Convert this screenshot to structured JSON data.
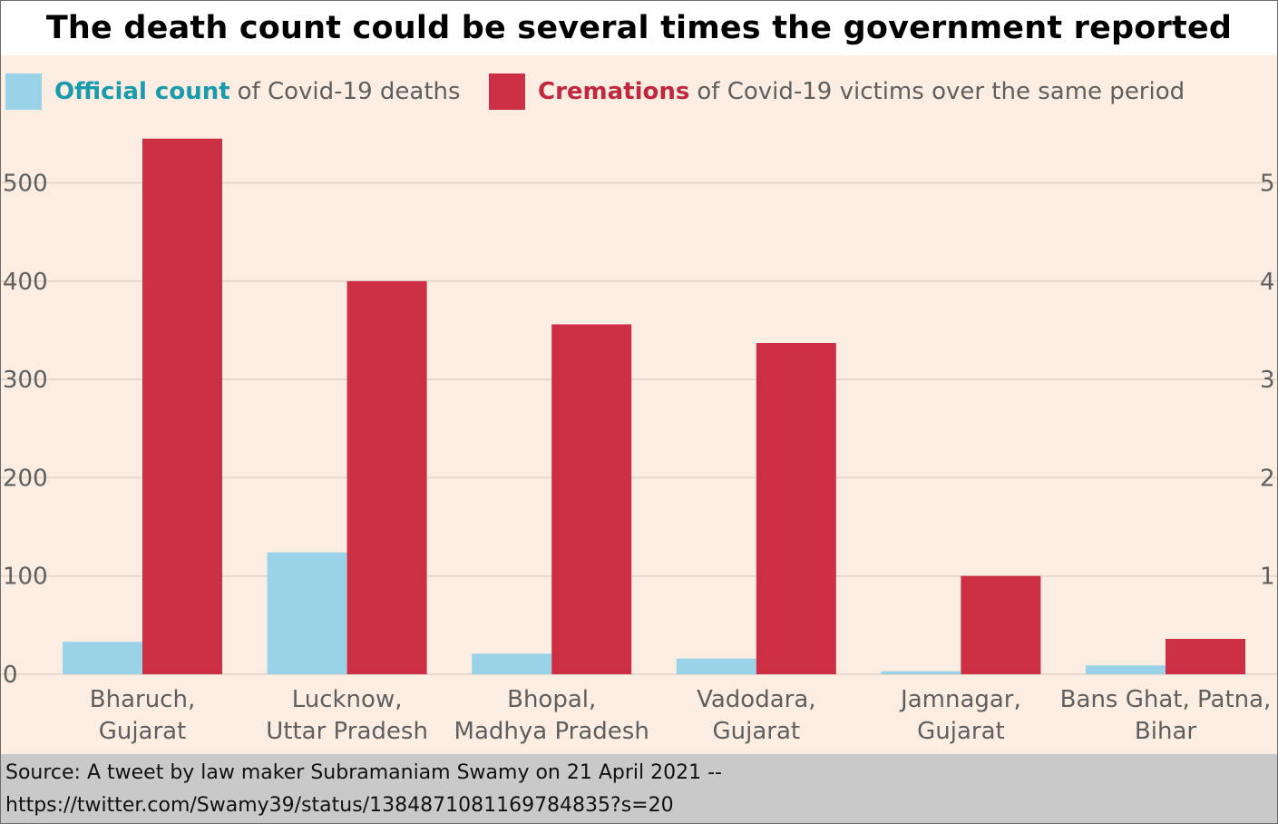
{
  "page": {
    "title": "The death count could be several times the government reported number",
    "source_line1": "Source: A tweet by law maker Subramaniam Swamy on 21 April 2021 --",
    "source_line2": "https://twitter.com/Swamy39/status/1384871081169784835?s=20"
  },
  "legend": {
    "official_key": "Official count",
    "official_rest": "of Covid-19 deaths",
    "cremations_key": "Cremations",
    "cremations_rest": "of Covid-19 victims over the same period"
  },
  "colors": {
    "official": "#9ad3e8",
    "cremations": "#cc2e44",
    "official_text": "#1a9aad",
    "cremations_text": "#c0283f",
    "background": "#fbede1"
  },
  "chart_data": {
    "type": "bar",
    "title": "The death count could be several times the government reported number",
    "categories": [
      [
        "Bharuch,",
        "Gujarat"
      ],
      [
        "Lucknow,",
        "Uttar Pradesh"
      ],
      [
        "Bhopal,",
        "Madhya Pradesh"
      ],
      [
        "Vadodara,",
        "Gujarat"
      ],
      [
        "Jamnagar,",
        "Gujarat"
      ],
      [
        "Bans Ghat, Patna,",
        "Bihar"
      ]
    ],
    "series": [
      {
        "name": "Official count of Covid-19 deaths",
        "values": [
          33,
          124,
          21,
          16,
          3,
          9
        ]
      },
      {
        "name": "Cremations of Covid-19 victims over the same period",
        "values": [
          545,
          400,
          356,
          337,
          100,
          36
        ]
      }
    ],
    "y_ticks_left": [
      "0",
      "100",
      "200",
      "300",
      "400",
      "500"
    ],
    "y_ticks_right": [
      "1",
      "2",
      "3",
      "4",
      "5"
    ],
    "ylim": [
      0,
      550
    ],
    "xlabel": "",
    "ylabel": "",
    "grid": true,
    "legend_position": "top"
  }
}
